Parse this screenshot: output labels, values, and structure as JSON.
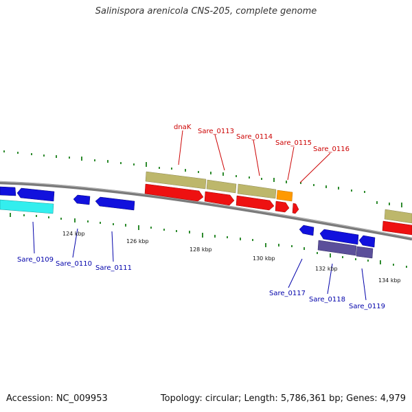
{
  "title": "Salinispora arenicola CNS-205, complete genome",
  "footer": {
    "accession": "Accession: NC_009953",
    "summary": "Topology: circular; Length: 5,786,361 bp; Genes: 4,979"
  },
  "colors": {
    "backbone": "#808080",
    "forward_cds": "#ee1111",
    "forward_gene": "#bdb76b",
    "reverse_cds": "#1111dd",
    "reverse_gene": "#5b4f9a",
    "rna": "#33eeee",
    "highlight": "#ff9900",
    "skew_tick": "#2e8b2e"
  },
  "kbp_labels": [
    "124 kbp",
    "126 kbp",
    "128 kbp",
    "130 kbp",
    "132 kbp",
    "134 kbp"
  ],
  "gene_labels": {
    "dnaK": "dnaK",
    "sare0113": "Sare_0113",
    "sare0114": "Sare_0114",
    "sare0115": "Sare_0115",
    "sare0116": "Sare_0116",
    "sare0109": "Sare_0109",
    "sare0110": "Sare_0110",
    "sare0111": "Sare_0111",
    "sare0117": "Sare_0117",
    "sare0118": "Sare_0118",
    "sare0119": "Sare_0119"
  }
}
